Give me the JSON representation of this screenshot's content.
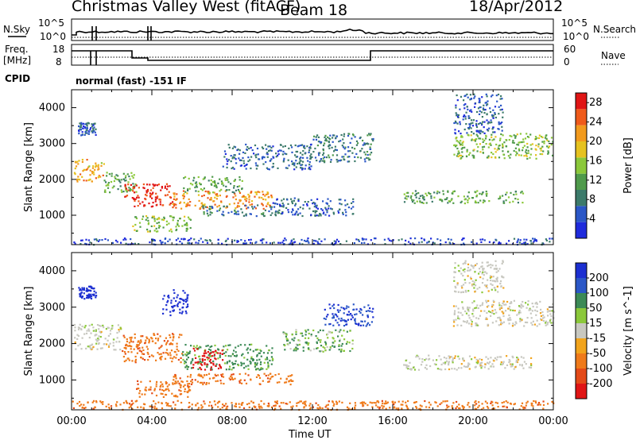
{
  "header": {
    "station": "Christmas Valley West (fitACF)",
    "beam": "Beam 18",
    "date": "18/Apr/2012"
  },
  "side_labels": {
    "nsky": "N.Sky",
    "nsearch": "N.Search",
    "freq": "Freq.",
    "freq_unit": "[MHz]",
    "nave": "Nave",
    "cpid": "CPID",
    "cpid_value": "normal (fast) -151 IF"
  },
  "strip_ticks": {
    "noise_left": [
      "10^5",
      "10^0"
    ],
    "noise_right": [
      "10^5",
      "10^0"
    ],
    "freq_left": [
      "18",
      "8"
    ],
    "nave_right": [
      "60",
      "0"
    ]
  },
  "chart_data": [
    {
      "type": "heatmap",
      "name_hint": "power",
      "xlabel": "",
      "ylabel": "Slant Range [km]",
      "x_ticks": [
        "00:00",
        "04:00",
        "08:00",
        "12:00",
        "16:00",
        "20:00",
        "00:00"
      ],
      "y_ticks": [
        1000,
        2000,
        3000,
        4000
      ],
      "x_range_hours": [
        0,
        24
      ],
      "y_range_km": [
        180,
        4500
      ],
      "colorbar": {
        "label": "Power [dB]",
        "ticks": [
          4,
          8,
          12,
          16,
          20,
          24,
          28
        ],
        "range": [
          0,
          30
        ],
        "colors": [
          "#1f2bdc",
          "#2b57c7",
          "#3c7a6a",
          "#4f9a4b",
          "#8bc83a",
          "#e6c21f",
          "#f29a1d",
          "#ef5a1a",
          "#e01515"
        ]
      },
      "regions": [
        {
          "t0": 0.1,
          "t1": 1.6,
          "r0": 1950,
          "r1": 2600,
          "level": 20
        },
        {
          "t0": 0.3,
          "t1": 1.2,
          "r0": 3250,
          "r1": 3600,
          "level": 6
        },
        {
          "t0": 1.6,
          "t1": 3.2,
          "r0": 1650,
          "r1": 2300,
          "level": 12
        },
        {
          "t0": 2.6,
          "t1": 5.0,
          "r0": 1250,
          "r1": 1900,
          "level": 28
        },
        {
          "t0": 3.0,
          "t1": 6.0,
          "r0": 550,
          "r1": 1000,
          "level": 14
        },
        {
          "t0": 5.0,
          "t1": 10.0,
          "r0": 1200,
          "r1": 1700,
          "level": 22
        },
        {
          "t0": 5.5,
          "t1": 8.5,
          "r0": 1650,
          "r1": 2100,
          "level": 12
        },
        {
          "t0": 6.5,
          "t1": 10.5,
          "r0": 1000,
          "r1": 1300,
          "level": 8
        },
        {
          "t0": 7.5,
          "t1": 12.0,
          "r0": 2300,
          "r1": 3000,
          "level": 6
        },
        {
          "t0": 12.0,
          "t1": 15.0,
          "r0": 2500,
          "r1": 3300,
          "level": 8
        },
        {
          "t0": 10.0,
          "t1": 14.0,
          "r0": 1000,
          "r1": 1500,
          "level": 6
        },
        {
          "t0": 16.5,
          "t1": 22.5,
          "r0": 1350,
          "r1": 1700,
          "level": 12
        },
        {
          "t0": 19.0,
          "t1": 24.0,
          "r0": 2600,
          "r1": 3300,
          "level": 14
        },
        {
          "t0": 19.0,
          "t1": 21.5,
          "r0": 3300,
          "r1": 4400,
          "level": 6
        },
        {
          "t0": 0.0,
          "t1": 24.0,
          "r0": 200,
          "r1": 380,
          "level": 4
        }
      ]
    },
    {
      "type": "heatmap",
      "name_hint": "velocity",
      "xlabel": "Time UT",
      "ylabel": "Slant Range [km]",
      "x_ticks": [
        "00:00",
        "04:00",
        "08:00",
        "12:00",
        "16:00",
        "20:00",
        "00:00"
      ],
      "y_ticks": [
        1000,
        2000,
        3000,
        4000
      ],
      "x_range_hours": [
        0,
        24
      ],
      "y_range_km": [
        180,
        4500
      ],
      "colorbar": {
        "label": "Velocity [m s^-1]",
        "ticks": [
          200,
          100,
          50,
          15,
          -15,
          -50,
          -100,
          -200
        ],
        "colors": [
          "#1c2fd1",
          "#2b57c7",
          "#3c8a56",
          "#8bc83a",
          "#c8c8c0",
          "#f2a41c",
          "#ef7a1a",
          "#e44a18",
          "#e01515"
        ]
      },
      "regions": [
        {
          "t0": 0.1,
          "t1": 2.5,
          "r0": 1850,
          "r1": 2550,
          "level": 0
        },
        {
          "t0": 0.3,
          "t1": 1.2,
          "r0": 3250,
          "r1": 3600,
          "level": 200
        },
        {
          "t0": 2.5,
          "t1": 5.5,
          "r0": 1500,
          "r1": 2300,
          "level": -60
        },
        {
          "t0": 3.2,
          "t1": 6.0,
          "r0": 550,
          "r1": 1000,
          "level": -60
        },
        {
          "t0": 4.5,
          "t1": 5.8,
          "r0": 2800,
          "r1": 3500,
          "level": 200
        },
        {
          "t0": 5.5,
          "t1": 10.0,
          "r0": 1300,
          "r1": 2000,
          "level": 40
        },
        {
          "t0": 6.0,
          "t1": 7.5,
          "r0": 1300,
          "r1": 1900,
          "level": -200
        },
        {
          "t0": 5.0,
          "t1": 11.0,
          "r0": 900,
          "r1": 1200,
          "level": -60
        },
        {
          "t0": 12.5,
          "t1": 15.0,
          "r0": 2500,
          "r1": 3100,
          "level": 150
        },
        {
          "t0": 10.5,
          "t1": 14.0,
          "r0": 1800,
          "r1": 2400,
          "level": 30
        },
        {
          "t0": 16.5,
          "t1": 23.0,
          "r0": 1300,
          "r1": 1700,
          "level": 0
        },
        {
          "t0": 19.0,
          "t1": 24.0,
          "r0": 2500,
          "r1": 3200,
          "level": 0
        },
        {
          "t0": 19.0,
          "t1": 21.5,
          "r0": 3400,
          "r1": 4300,
          "level": 0
        },
        {
          "t0": 0.0,
          "t1": 24.0,
          "r0": 200,
          "r1": 450,
          "level": -60
        }
      ]
    }
  ]
}
